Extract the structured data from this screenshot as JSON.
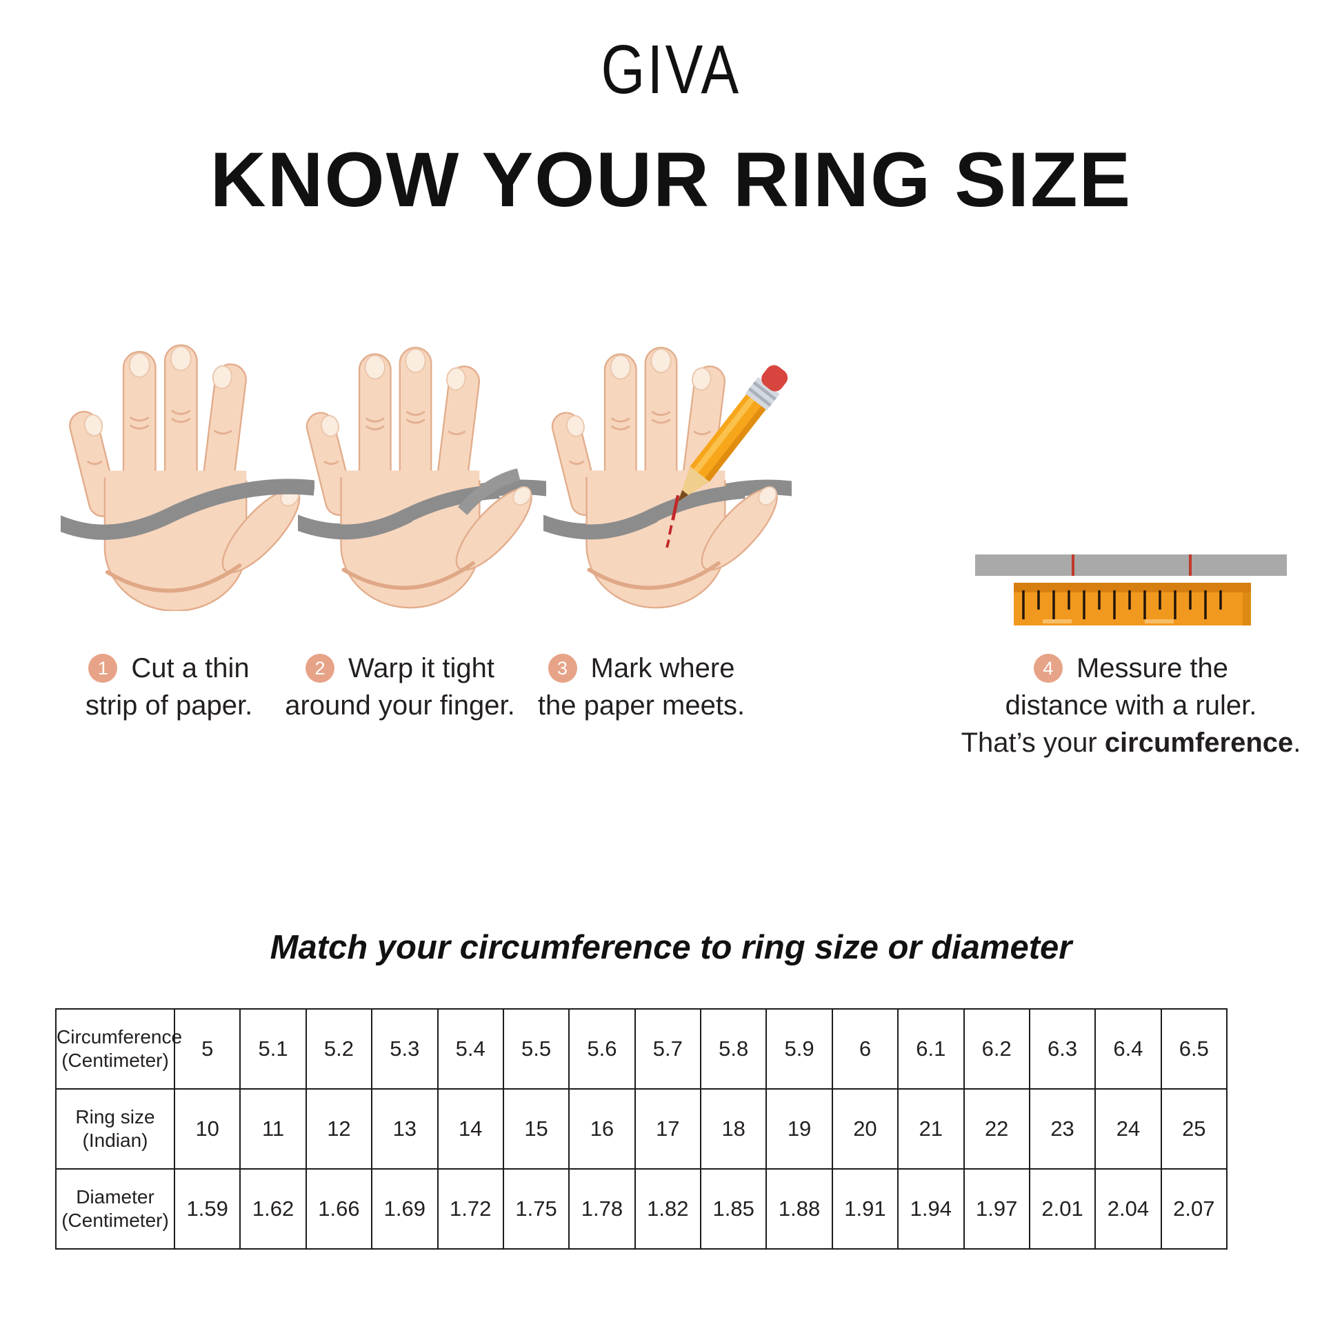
{
  "brand": {
    "logo": "GIVA"
  },
  "title": "KNOW YOUR RING SIZE",
  "steps": [
    {
      "number": "1",
      "icon": "hand-with-paper-strip-icon",
      "line1": "Cut a thin",
      "line2": "strip of paper."
    },
    {
      "number": "2",
      "icon": "hand-strip-wrapped-finger-icon",
      "line1": "Warp it tight",
      "line2": "around your finger."
    },
    {
      "number": "3",
      "icon": "hand-pencil-mark-icon",
      "line1": "Mark where",
      "line2": "the paper meets."
    },
    {
      "number": "4",
      "icon": "paper-strip-ruler-icon",
      "line1": "Messure the",
      "line2": "distance with a ruler.",
      "line3_prefix": "That’s your ",
      "line3_bold": "circumference",
      "line3_suffix": "."
    }
  ],
  "table_section": {
    "heading": "Match your circumference to ring size or diameter",
    "rows": [
      {
        "label_line1": "Circumference",
        "label_line2": "(Centimeter)",
        "values": [
          "5",
          "5.1",
          "5.2",
          "5.3",
          "5.4",
          "5.5",
          "5.6",
          "5.7",
          "5.8",
          "5.9",
          "6",
          "6.1",
          "6.2",
          "6.3",
          "6.4",
          "6.5"
        ]
      },
      {
        "label_line1": "Ring size",
        "label_line2": "(Indian)",
        "values": [
          "10",
          "11",
          "12",
          "13",
          "14",
          "15",
          "16",
          "17",
          "18",
          "19",
          "20",
          "21",
          "22",
          "23",
          "24",
          "25"
        ]
      },
      {
        "label_line1": "Diameter",
        "label_line2": "(Centimeter)",
        "values": [
          "1.59",
          "1.62",
          "1.66",
          "1.69",
          "1.72",
          "1.75",
          "1.78",
          "1.82",
          "1.85",
          "1.88",
          "1.91",
          "1.94",
          "1.97",
          "2.01",
          "2.04",
          "2.07"
        ]
      }
    ]
  },
  "colors": {
    "badge": "#E7A387",
    "skin": "#F7D6BE",
    "skin_shade": "#E2AD8C",
    "strip_gray": "#8C8C8C",
    "ruler_orange": "#F0991E",
    "ruler_band": "#D77E11",
    "mark_red": "#C0392B",
    "table_border": "#1c1c1c"
  }
}
